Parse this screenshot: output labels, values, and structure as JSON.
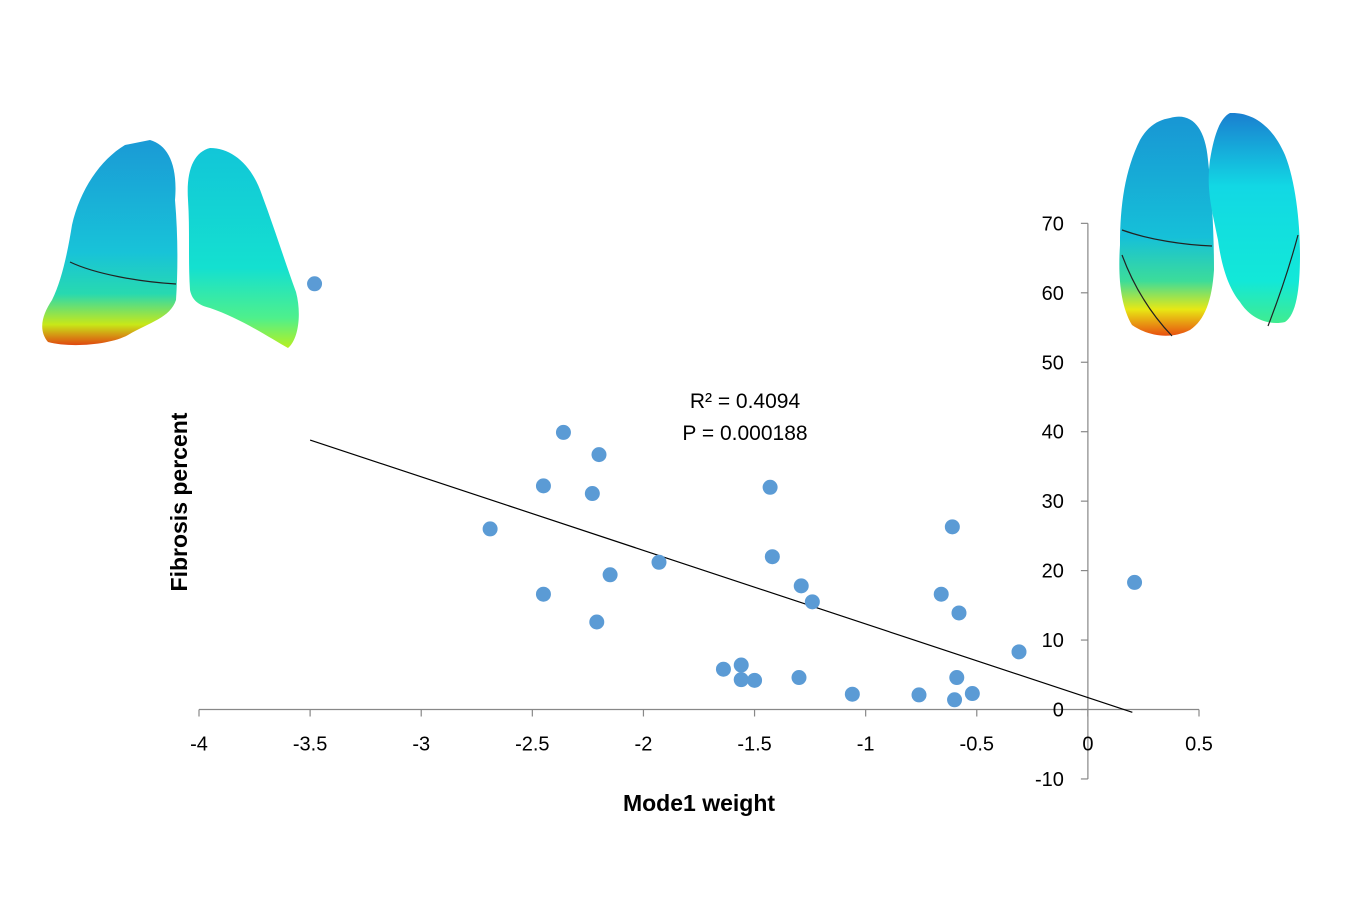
{
  "chart_data": {
    "type": "scatter",
    "title": "",
    "xlabel": "Mode1 weight",
    "ylabel": "Fibrosis percent",
    "xlim": [
      -4,
      0.5
    ],
    "ylim": [
      -10,
      70
    ],
    "xticks": [
      -4,
      -3.5,
      -3,
      -2.5,
      -2,
      -1.5,
      -1,
      -0.5,
      0,
      0.5
    ],
    "xtick_labels": [
      "-4",
      "-3.5",
      "-3",
      "-2.5",
      "-2",
      "-1.5",
      "-1",
      "-0.5",
      "0",
      "0.5"
    ],
    "yticks": [
      -10,
      0,
      10,
      20,
      30,
      40,
      50,
      60,
      70
    ],
    "ytick_labels": [
      "-10",
      "0",
      "10",
      "20",
      "30",
      "40",
      "50",
      "60",
      "70"
    ],
    "grid": false,
    "legend": "none",
    "marker_color": "#5B9BD5",
    "trendline_color": "#000000",
    "annotations": [
      "R² = 0.4094",
      "P = 0.000188"
    ],
    "trendline": {
      "x": [
        -3.5,
        0.2
      ],
      "y": [
        38.8,
        -0.4
      ]
    },
    "points": [
      {
        "x": -3.48,
        "y": 61.3
      },
      {
        "x": -2.69,
        "y": 26.0
      },
      {
        "x": -2.45,
        "y": 32.2
      },
      {
        "x": -2.45,
        "y": 16.6
      },
      {
        "x": -2.36,
        "y": 39.9
      },
      {
        "x": -2.23,
        "y": 31.1
      },
      {
        "x": -2.21,
        "y": 12.6
      },
      {
        "x": -2.2,
        "y": 36.7
      },
      {
        "x": -2.15,
        "y": 19.4
      },
      {
        "x": -1.93,
        "y": 21.2
      },
      {
        "x": -1.64,
        "y": 5.8
      },
      {
        "x": -1.56,
        "y": 6.4
      },
      {
        "x": -1.56,
        "y": 4.3
      },
      {
        "x": -1.5,
        "y": 4.2
      },
      {
        "x": -1.43,
        "y": 32.0
      },
      {
        "x": -1.42,
        "y": 22.0
      },
      {
        "x": -1.29,
        "y": 17.8
      },
      {
        "x": -1.3,
        "y": 4.6
      },
      {
        "x": -1.24,
        "y": 15.5
      },
      {
        "x": -1.06,
        "y": 2.2
      },
      {
        "x": -0.76,
        "y": 2.1
      },
      {
        "x": -0.66,
        "y": 16.6
      },
      {
        "x": -0.61,
        "y": 26.3
      },
      {
        "x": -0.59,
        "y": 4.6
      },
      {
        "x": -0.6,
        "y": 1.4
      },
      {
        "x": -0.58,
        "y": 13.9
      },
      {
        "x": -0.52,
        "y": 2.3
      },
      {
        "x": -0.31,
        "y": 8.3
      },
      {
        "x": 0.21,
        "y": 18.3
      }
    ]
  },
  "illustrations": {
    "left_icon": "lung-mesh-left-icon",
    "right_icon": "lung-mesh-right-icon"
  }
}
